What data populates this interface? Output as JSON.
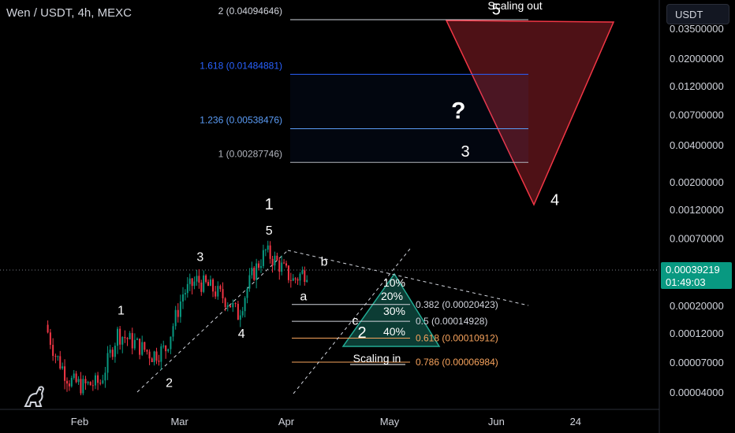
{
  "header": {
    "title": "Wen / USDT, 4h, MEXC",
    "currency": "USDT"
  },
  "current_price": {
    "value": "0.00039219",
    "countdown": "01:49:03"
  },
  "colors": {
    "up": "#089981",
    "down": "#f23645",
    "fib_blue": "#2962ff",
    "red_zone": "#f23645",
    "green_zone": "#22ab94",
    "dashed": "#d1d4dc",
    "orange": "#f7a35c"
  },
  "chart_data": {
    "type": "candlestick",
    "title": "Wen / USDT, 4h, MEXC",
    "x_ticks": [
      "Feb",
      "Mar",
      "Apr",
      "May",
      "Jun",
      "24"
    ],
    "y_scale": "log",
    "y_ticks": [
      "0.03500000",
      "0.02000000",
      "0.01200000",
      "0.00700000",
      "0.00400000",
      "0.00200000",
      "0.00120000",
      "0.00070000",
      "0.00020000",
      "0.00012000",
      "0.00007000",
      "0.00004000"
    ],
    "close_series": [
      {
        "x": "2024-01-22",
        "y": 0.00014
      },
      {
        "x": "2024-01-25",
        "y": 8e-05
      },
      {
        "x": "2024-01-29",
        "y": 5e-05
      },
      {
        "x": "2024-02-02",
        "y": 4.5e-05
      },
      {
        "x": "2024-02-07",
        "y": 4.8e-05
      },
      {
        "x": "2024-02-12",
        "y": 0.00012
      },
      {
        "x": "2024-02-17",
        "y": 0.0001
      },
      {
        "x": "2024-02-22",
        "y": 8e-05
      },
      {
        "x": "2024-02-26",
        "y": 9e-05
      },
      {
        "x": "2024-03-02",
        "y": 0.00025
      },
      {
        "x": "2024-03-06",
        "y": 0.00032
      },
      {
        "x": "2024-03-10",
        "y": 0.00028
      },
      {
        "x": "2024-03-15",
        "y": 0.00022
      },
      {
        "x": "2024-03-18",
        "y": 0.00017
      },
      {
        "x": "2024-03-22",
        "y": 0.00035
      },
      {
        "x": "2024-03-26",
        "y": 0.00055
      },
      {
        "x": "2024-03-30",
        "y": 0.00043
      },
      {
        "x": "2024-04-03",
        "y": 0.00032
      },
      {
        "x": "2024-04-07",
        "y": 0.00039
      }
    ],
    "fib_extension_levels": [
      {
        "label": "2 (0.04094646)",
        "value": 0.04094646
      },
      {
        "label": "1.618 (0.01484881)",
        "value": 0.01484881
      },
      {
        "label": "1.236 (0.00538476)",
        "value": 0.00538476
      },
      {
        "label": "1 (0.00287746)",
        "value": 0.00287746
      }
    ],
    "fib_retracement_levels": [
      {
        "label": "0.382 (0.00020423)",
        "value": 0.00020423
      },
      {
        "label": "0.5 (0.00014928)",
        "value": 0.00014928
      },
      {
        "label": "0.618 (0.00010912)",
        "value": 0.00010912
      },
      {
        "label": "0.786 (0.00006984)",
        "value": 6.984e-05
      }
    ],
    "wave_labels": [
      {
        "text": "1",
        "x": "2024-02-13",
        "y": 0.00017
      },
      {
        "text": "2",
        "x": "2024-02-27",
        "y": 4.4e-05
      },
      {
        "text": "3",
        "x": "2024-03-07",
        "y": 0.00046
      },
      {
        "text": "4",
        "x": "2024-03-19",
        "y": 0.00011
      },
      {
        "text": "5",
        "x": "2024-03-27",
        "y": 0.00075
      },
      {
        "text": "1",
        "x": "2024-03-27",
        "y": 0.0012
      },
      {
        "text": "a",
        "x": "2024-04-06",
        "y": 0.00022
      },
      {
        "text": "b",
        "x": "2024-04-12",
        "y": 0.00042
      },
      {
        "text": "c",
        "x": "2024-04-21",
        "y": 0.00014
      },
      {
        "text": "2",
        "x": "2024-04-23",
        "y": 0.00011
      },
      {
        "text": "3",
        "x": "2024-05-23",
        "y": 0.0032
      },
      {
        "text": "4",
        "x": "2024-06-18",
        "y": 0.0013
      },
      {
        "text": "5",
        "x": "2024-06-01",
        "y": 0.045
      },
      {
        "text": "?",
        "x": "2024-05-21",
        "y": 0.0065
      }
    ],
    "scaling_in": {
      "label": "Scaling in",
      "tiers": [
        "10%",
        "20%",
        "30%",
        "40%"
      ]
    },
    "scaling_out": {
      "label": "Scaling out"
    }
  }
}
